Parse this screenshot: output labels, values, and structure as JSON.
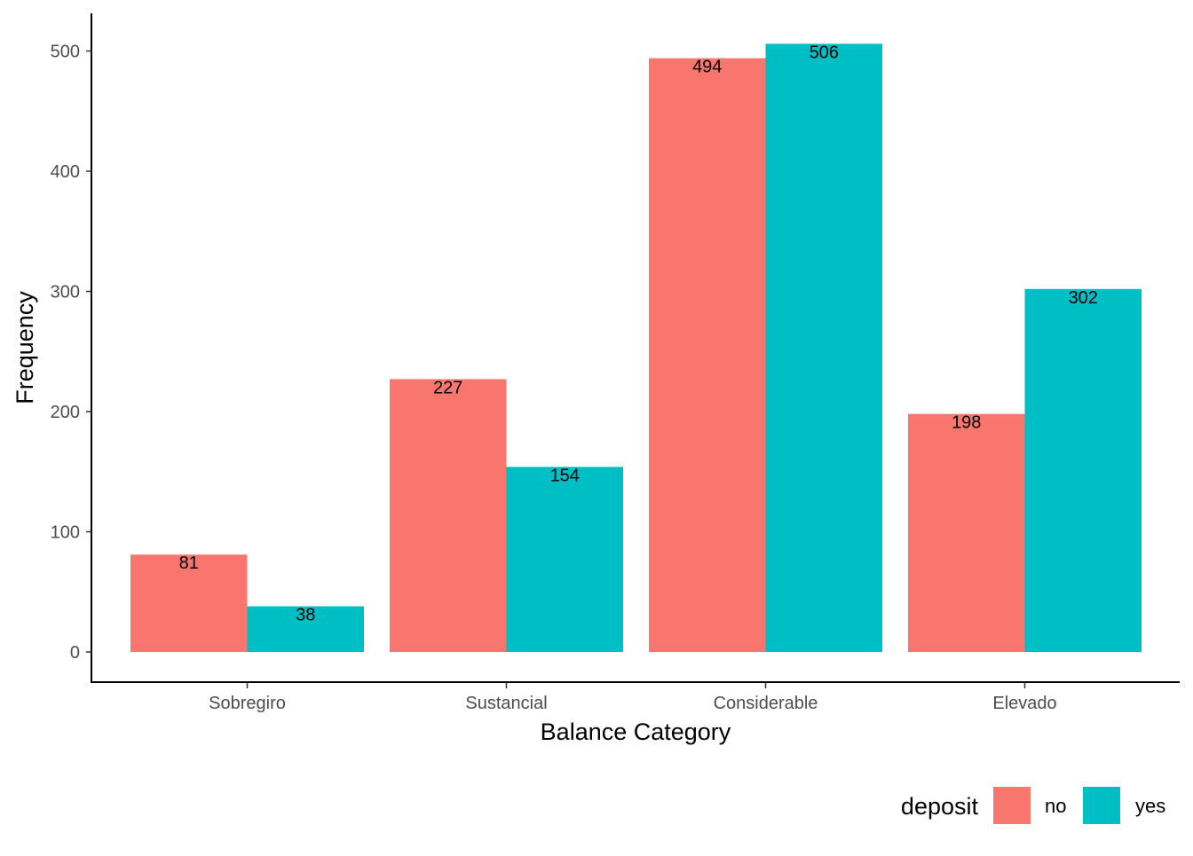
{
  "chart_data": {
    "type": "bar",
    "title": "",
    "xlabel": "Balance Category",
    "ylabel": "Frequency",
    "categories": [
      "Sobregiro",
      "Sustancial",
      "Considerable",
      "Elevado"
    ],
    "series": [
      {
        "name": "no",
        "color": "#F8766D",
        "values": [
          81,
          227,
          494,
          198
        ]
      },
      {
        "name": "yes",
        "color": "#00BFC4",
        "values": [
          38,
          154,
          506,
          302
        ]
      }
    ],
    "ylim": [
      0,
      500
    ],
    "yticks": [
      0,
      100,
      200,
      300,
      400,
      500
    ],
    "grid": false,
    "legend": {
      "title": "deposit",
      "placement": "bottom-right"
    }
  }
}
